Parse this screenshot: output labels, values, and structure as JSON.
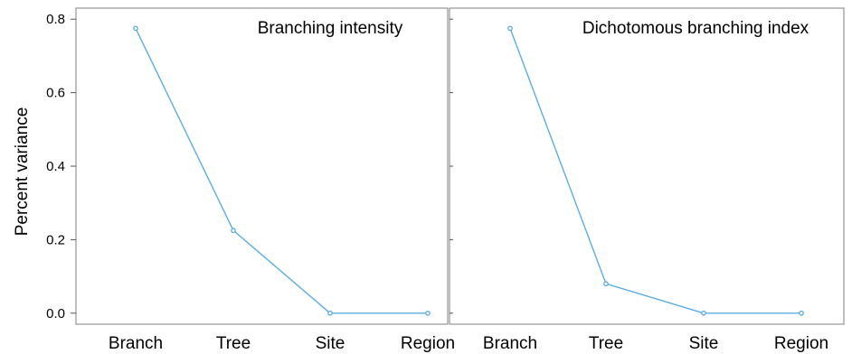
{
  "chart_data": [
    {
      "type": "line",
      "title": "Branching intensity",
      "ylabel": "Percent variance",
      "xlabel": "",
      "categories": [
        "Branch",
        "Tree",
        "Site",
        "Region"
      ],
      "values": [
        0.775,
        0.225,
        0.0,
        0.0
      ],
      "ylim": [
        -0.03,
        0.83
      ],
      "yticks": [
        "0.0",
        "0.2",
        "0.4",
        "0.6",
        "0.8"
      ],
      "grid": false,
      "colors": {
        "line": "#5aaee6",
        "marker": "#4aa6e2"
      }
    },
    {
      "type": "line",
      "title": "Dichotomous branching index",
      "ylabel": "",
      "xlabel": "",
      "categories": [
        "Branch",
        "Tree",
        "Site",
        "Region"
      ],
      "values": [
        0.775,
        0.08,
        0.0,
        0.0
      ],
      "ylim": [
        -0.03,
        0.83
      ],
      "yticks": [],
      "grid": false,
      "colors": {
        "line": "#5aaee6",
        "marker": "#4aa6e2"
      }
    }
  ]
}
